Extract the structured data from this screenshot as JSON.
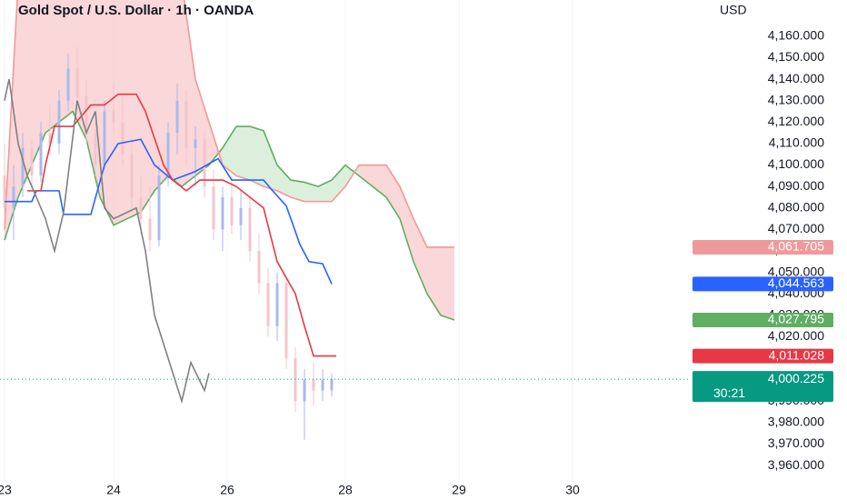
{
  "chart_data": {
    "type": "candlestick",
    "title": "Gold Spot / U.S. Dollar · 1h · OANDA",
    "currency": "USD",
    "xlim": [
      -1,
      150
    ],
    "ylim": [
      3952.4,
      4176.9
    ],
    "grid": "vertical",
    "xticks": [
      {
        "value": 0,
        "label": "23"
      },
      {
        "value": 24,
        "label": "24"
      },
      {
        "value": 49,
        "label": "26"
      },
      {
        "value": 75,
        "label": "28"
      },
      {
        "value": 100,
        "label": "29"
      },
      {
        "value": 125,
        "label": "30"
      }
    ],
    "yticks": [
      {
        "value": 4160,
        "label": "4,160.000"
      },
      {
        "value": 4150,
        "label": "4,150.000"
      },
      {
        "value": 4140,
        "label": "4,140.000"
      },
      {
        "value": 4130,
        "label": "4,130.000"
      },
      {
        "value": 4120,
        "label": "4,120.000"
      },
      {
        "value": 4110,
        "label": "4,110.000"
      },
      {
        "value": 4100,
        "label": "4,100.000"
      },
      {
        "value": 4090,
        "label": "4,090.000"
      },
      {
        "value": 4080,
        "label": "4,080.000"
      },
      {
        "value": 4070,
        "label": "4,070.000"
      },
      {
        "value": 4060,
        "label": "4,060.000"
      },
      {
        "value": 4050,
        "label": "4,050.000"
      },
      {
        "value": 4040,
        "label": "4,040.000"
      },
      {
        "value": 4030,
        "label": "4,030.000"
      },
      {
        "value": 4020,
        "label": "4,020.000"
      },
      {
        "value": 4010,
        "label": "4,010.000"
      },
      {
        "value": 4000,
        "label": "4,000.000"
      },
      {
        "value": 3990,
        "label": "3,990.000"
      },
      {
        "value": 3980,
        "label": "3,980.000"
      },
      {
        "value": 3970,
        "label": "3,970.000"
      },
      {
        "value": 3960,
        "label": "3,960.000"
      }
    ],
    "candles": {
      "bull_color": "#a9b9ec",
      "bear_color": "#f3c4cc",
      "x": [
        0,
        2,
        4,
        6,
        8,
        10,
        12,
        14,
        16,
        18,
        20,
        22,
        24,
        26,
        28,
        30,
        32,
        34,
        36,
        38,
        40,
        42,
        44,
        46,
        48,
        50,
        52,
        54,
        56,
        58,
        60,
        62,
        64,
        66,
        68,
        70,
        72
      ],
      "open": [
        4095,
        4080,
        4090,
        4108,
        4095,
        4115,
        4110,
        4130,
        4145,
        4132,
        4115,
        4100,
        4125,
        4120,
        4105,
        4085,
        4075,
        4065,
        4095,
        4115,
        4130,
        4108,
        4112,
        4090,
        4070,
        4085,
        4072,
        4080,
        4060,
        4045,
        4025,
        4045,
        4010,
        3990,
        4000,
        3995,
        3995
      ],
      "high": [
        4110,
        4100,
        4115,
        4112,
        4120,
        4128,
        4135,
        4152,
        4155,
        4140,
        4125,
        4130,
        4138,
        4132,
        4112,
        4095,
        4090,
        4100,
        4120,
        4138,
        4135,
        4118,
        4115,
        4098,
        4090,
        4095,
        4088,
        4085,
        4068,
        4052,
        4050,
        4048,
        4015,
        4005,
        4008,
        4005,
        4003
      ],
      "low": [
        4075,
        4065,
        4085,
        4090,
        4092,
        4105,
        4105,
        4125,
        4128,
        4110,
        4095,
        4098,
        4115,
        4100,
        4080,
        4068,
        4060,
        4062,
        4090,
        4105,
        4100,
        4090,
        4085,
        4065,
        4060,
        4068,
        4065,
        4055,
        4040,
        4020,
        4018,
        4005,
        3985,
        3972,
        3988,
        3990,
        3992
      ],
      "close": [
        4080,
        4090,
        4108,
        4095,
        4115,
        4110,
        4130,
        4145,
        4132,
        4115,
        4100,
        4125,
        4120,
        4105,
        4085,
        4075,
        4065,
        4095,
        4115,
        4130,
        4108,
        4112,
        4090,
        4070,
        4085,
        4072,
        4080,
        4060,
        4045,
        4025,
        4045,
        4010,
        3990,
        4000,
        3995,
        4000,
        4000.225
      ]
    },
    "cloud": {
      "up_fill": "#f8c9cc",
      "down_fill": "#cfe9d0",
      "x": [
        0,
        3,
        6,
        9,
        12,
        15,
        18,
        21,
        24,
        27,
        30,
        33,
        36,
        39,
        42,
        45,
        48,
        51,
        54,
        57,
        60,
        63,
        66,
        69,
        72,
        75,
        78,
        81,
        84,
        87,
        90,
        93,
        96,
        99
      ],
      "span_a": {
        "color": "#5fae62",
        "values": [
          4065,
          4085,
          4100,
          4115,
          4120,
          4125,
          4112,
          4085,
          4072,
          4075,
          4078,
          4088,
          4095,
          4090,
          4095,
          4100,
          4108,
          4118,
          4118,
          4116,
          4100,
          4093,
          4092,
          4090,
          4093,
          4100,
          4095,
          4090,
          4085,
          4075,
          4055,
          4040,
          4030,
          4027.795
        ]
      },
      "span_b": {
        "color": "#ef9a9a",
        "values": [
          4070,
          4185,
          4185,
          4185,
          4185,
          4185,
          4185,
          4185,
          4185,
          4185,
          4185,
          4185,
          4185,
          4185,
          4140,
          4120,
          4100,
          4095,
          4093,
          4090,
          4088,
          4085,
          4083,
          4083,
          4083,
          4090,
          4100,
          4100,
          4100,
          4090,
          4075,
          4061.705,
          4061.705,
          4061.705
        ]
      }
    },
    "series": [
      {
        "color": "#2962ff",
        "x": [
          0,
          6,
          7,
          12,
          13,
          19,
          22,
          25,
          30,
          33,
          37,
          42,
          47,
          50,
          57,
          59,
          62,
          65,
          67,
          70,
          72
        ],
        "values": [
          4083,
          4083,
          4088,
          4088,
          4077,
          4077,
          4100,
          4110,
          4112,
          4100,
          4093,
          4097,
          4103,
          4093,
          4093,
          4088,
          4081,
          4063,
          4055,
          4054,
          4044.563
        ]
      },
      {
        "color": "#e53946",
        "x": [
          5,
          8,
          9,
          11,
          15,
          19,
          22,
          25,
          29,
          31,
          35,
          37,
          40,
          43,
          48,
          51,
          57,
          60,
          64,
          66,
          68,
          73
        ],
        "values": [
          4088,
          4088,
          4100,
          4118,
          4118,
          4128,
          4128,
          4133,
          4133,
          4125,
          4100,
          4093,
          4088,
          4093,
          4093,
          4090,
          4080,
          4055,
          4040,
          4025,
          4011.028,
          4011.028
        ]
      },
      {
        "color": "#808080",
        "x": [
          0,
          1,
          3,
          5,
          7,
          9,
          11,
          13,
          16,
          18,
          20,
          22,
          24,
          29,
          31,
          33,
          36,
          39,
          41,
          44,
          45
        ],
        "values": [
          4130,
          4140,
          4110,
          4095,
          4085,
          4075,
          4060,
          4078,
          4130,
          4115,
          4125,
          4080,
          4075,
          4080,
          4060,
          4030,
          4010,
          3990,
          4008,
          3995,
          4003
        ]
      }
    ],
    "price_labels": [
      {
        "value": 4061.705,
        "label": "4,061.705",
        "color": "#ef9a9a"
      },
      {
        "value": 4044.563,
        "label": "4,044.563",
        "color": "#2962ff"
      },
      {
        "value": 4027.795,
        "label": "4,027.795",
        "color": "#5fae62"
      },
      {
        "value": 4011.028,
        "label": "4,011.028",
        "color": "#e53946"
      },
      {
        "value": 4000.225,
        "label": "4,000.225",
        "color": "#089981",
        "countdown": "30:21"
      }
    ]
  }
}
